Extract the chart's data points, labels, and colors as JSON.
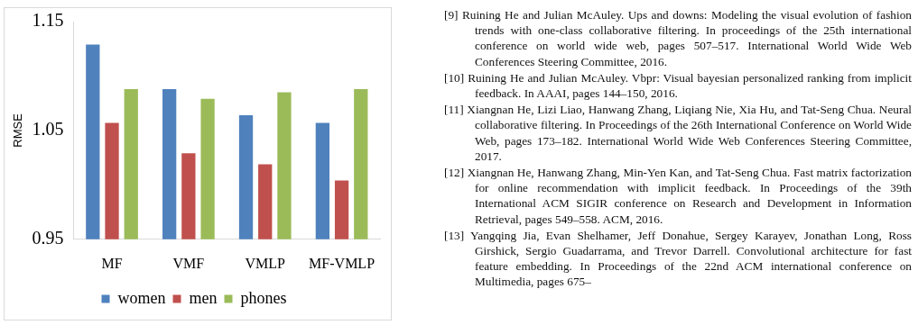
{
  "chart_data": {
    "type": "bar",
    "ylabel": "RMSE",
    "categories": [
      "MF",
      "VMF",
      "VMLP",
      "MF-VMLP"
    ],
    "series": [
      {
        "name": "women",
        "color": "#4f81bd",
        "values": [
          1.129,
          1.088,
          1.064,
          1.057
        ]
      },
      {
        "name": "men",
        "color": "#c0504d",
        "values": [
          1.057,
          1.029,
          1.019,
          1.004
        ]
      },
      {
        "name": "phones",
        "color": "#9bbb59",
        "values": [
          1.088,
          1.079,
          1.085,
          1.088
        ]
      }
    ],
    "ylim": [
      0.95,
      1.15
    ],
    "yticks": [
      0.95,
      1.05,
      1.15
    ],
    "grid": false,
    "legend": "bottom",
    "annotations": [
      "[9] Ruining He and Julian McAuley. Ups and downs: Modeling the visual evolution of fashion trends with one-class collaborative filtering. In proceedings of the 25th international conference on world wide web, pages 507–517. International World Wide Web Conferences Steering Committee, 2016.",
      "[10] Ruining He and Julian McAuley. Vbpr: Visual bayesian personalized ranking from implicit feedback. In AAAI, pages 144–150, 2016.",
      "[11] Xiangnan He, Lizi Liao, Hanwang Zhang, Liqiang Nie, Xia Hu, and Tat-Seng Chua. Neural collaborative filtering. In Proceedings of the 26th International Conference on World Wide Web, pages 173–182. International World Wide Web Conferences Steering Committee, 2017.",
      "[12] Xiangnan He, Hanwang Zhang, Min-Yen Kan, and Tat-Seng Chua. Fast matrix factorization for online recommendation with implicit feedback. In Proceedings of the 39th International ACM SIGIR conference on Research and Development in Information Retrieval, pages 549–558. ACM, 2016.",
      "[13] Yangqing Jia, Evan Shelhamer, Jeff Donahue, Sergey Karayev, Jonathan Long, Ross Girshick, Sergio Guadarrama, and Trevor Darrell. Convolutional architecture for fast feature embedding. In Proceedings of the 22nd ACM international conference on Multimedia, pages 675–"
    ]
  }
}
